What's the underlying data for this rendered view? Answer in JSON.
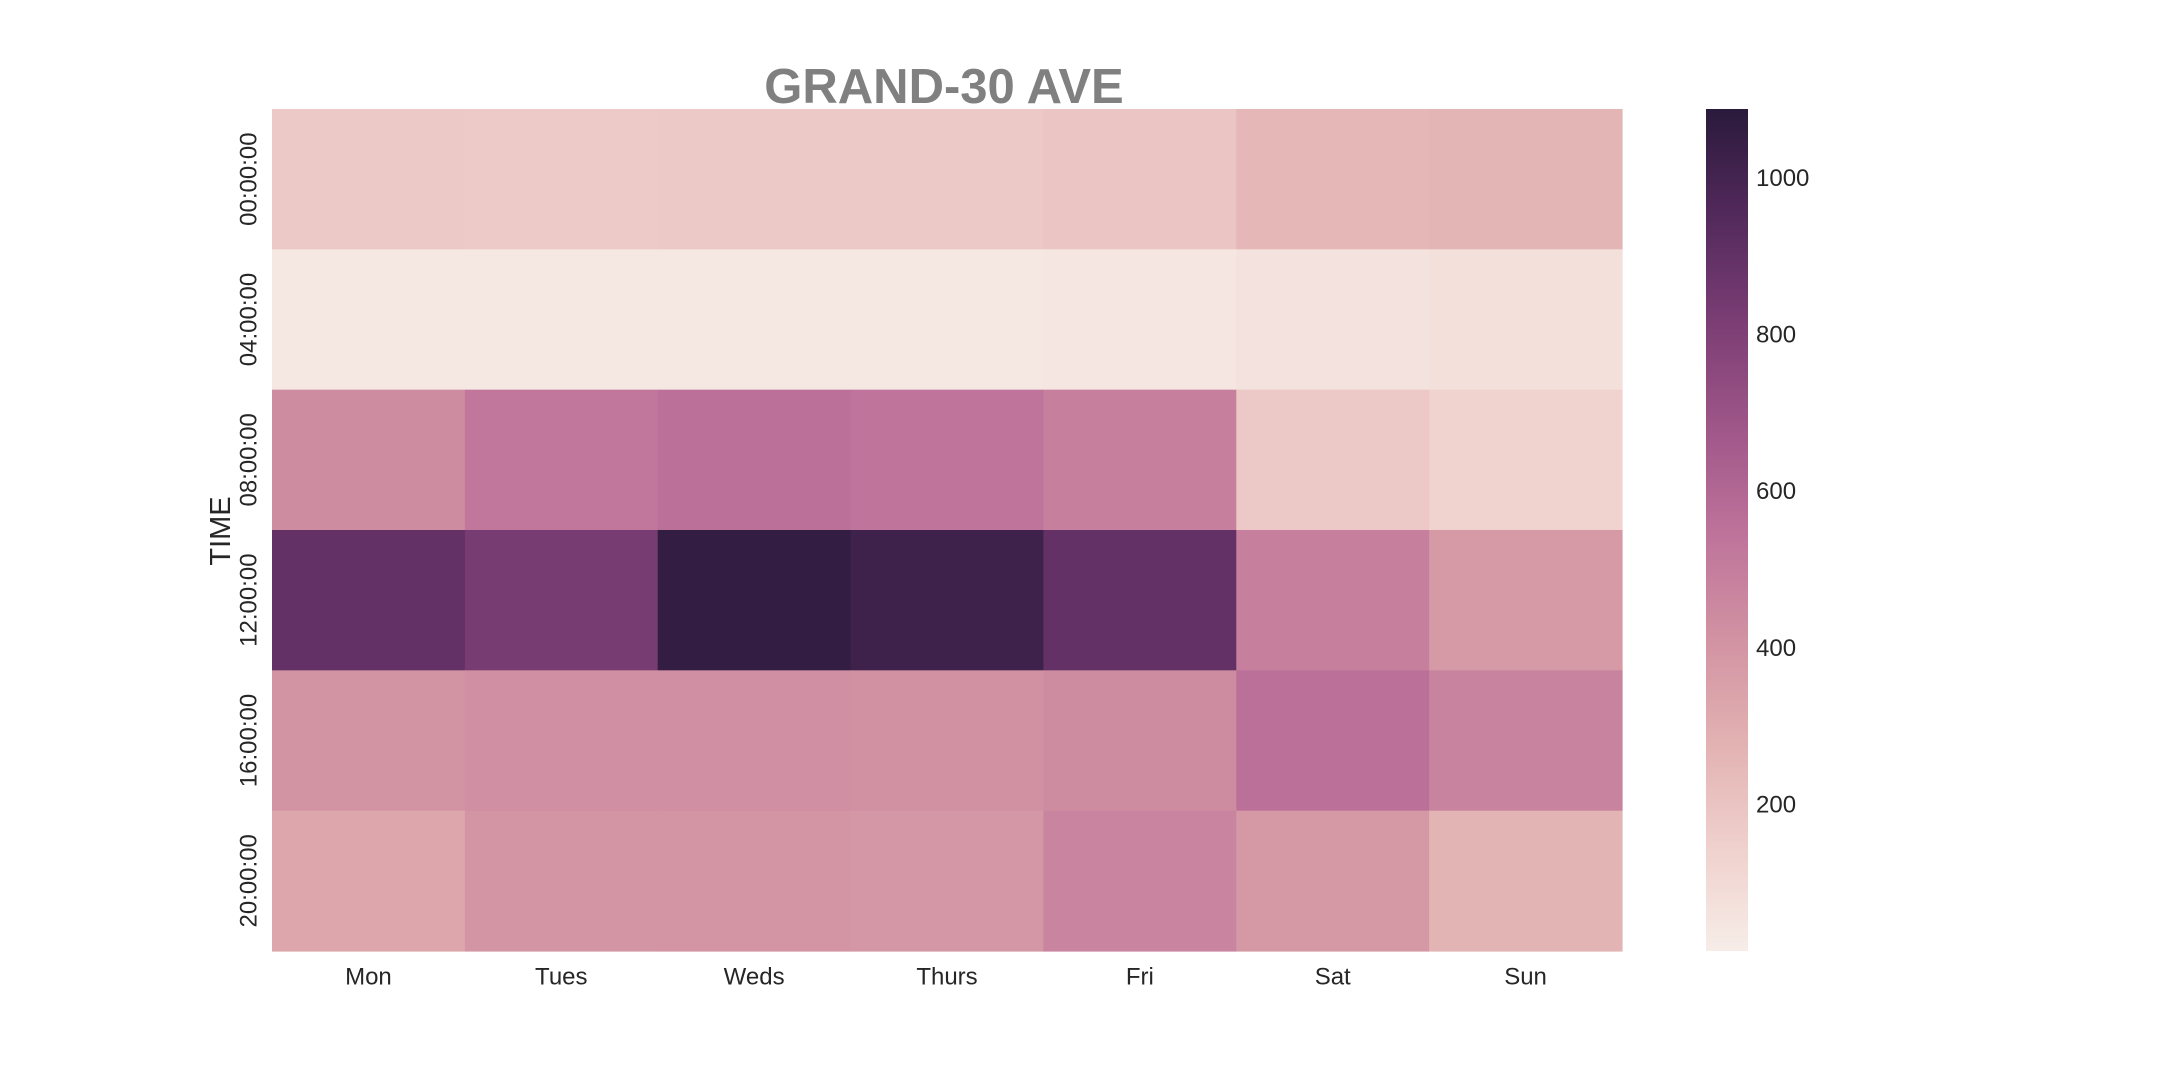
{
  "chart_data": {
    "type": "heatmap",
    "title": "GRAND-30 AVE",
    "xlabel": "",
    "ylabel": "TIME",
    "x_categories": [
      "Mon",
      "Tues",
      "Weds",
      "Thurs",
      "Fri",
      "Sat",
      "Sun"
    ],
    "y_categories": [
      "00:00:00",
      "04:00:00",
      "08:00:00",
      "12:00:00",
      "16:00:00",
      "20:00:00"
    ],
    "values": [
      [
        180,
        175,
        178,
        180,
        195,
        255,
        265
      ],
      [
        45,
        45,
        45,
        45,
        48,
        65,
        75
      ],
      [
        440,
        530,
        560,
        540,
        490,
        180,
        140
      ],
      [
        900,
        830,
        1060,
        1020,
        900,
        490,
        380
      ],
      [
        410,
        425,
        425,
        420,
        440,
        560,
        480
      ],
      [
        330,
        400,
        405,
        395,
        475,
        390,
        270
      ]
    ],
    "colorbar": {
      "min": 15,
      "max": 1090,
      "ticks": [
        200,
        400,
        600,
        800,
        1000
      ],
      "palette": [
        "#f7ede8",
        "#efd0cc",
        "#e2b1b1",
        "#d191a2",
        "#bd729a",
        "#9e5588",
        "#7a3d74",
        "#52295b",
        "#2a1a3c"
      ]
    },
    "grid": false,
    "legend": "colorbar-right"
  }
}
